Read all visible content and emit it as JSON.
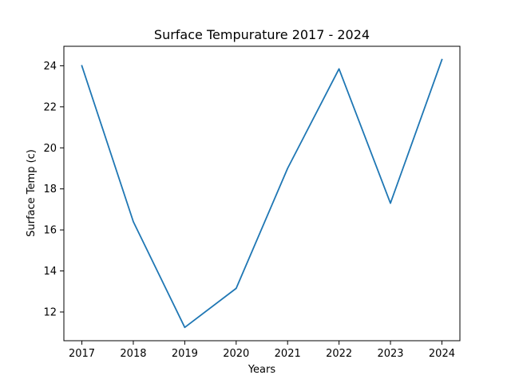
{
  "chart_data": {
    "type": "line",
    "title": "Surface Tempurature 2017 - 2024",
    "xlabel": "Years",
    "ylabel": "Surface Temp (c)",
    "x": [
      2017,
      2018,
      2019,
      2020,
      2021,
      2022,
      2023,
      2024
    ],
    "series": [
      {
        "values": [
          24.0,
          16.4,
          11.25,
          13.15,
          19.0,
          23.85,
          17.3,
          24.3
        ],
        "color": "#1f77b4"
      }
    ],
    "xticks": [
      "2017",
      "2018",
      "2019",
      "2020",
      "2021",
      "2022",
      "2023",
      "2024"
    ],
    "yticks": [
      "12",
      "14",
      "16",
      "18",
      "20",
      "22",
      "24"
    ],
    "xlim": [
      2016.65,
      2024.35
    ],
    "ylim": [
      10.6,
      24.95
    ],
    "grid": false,
    "legend": "none"
  }
}
